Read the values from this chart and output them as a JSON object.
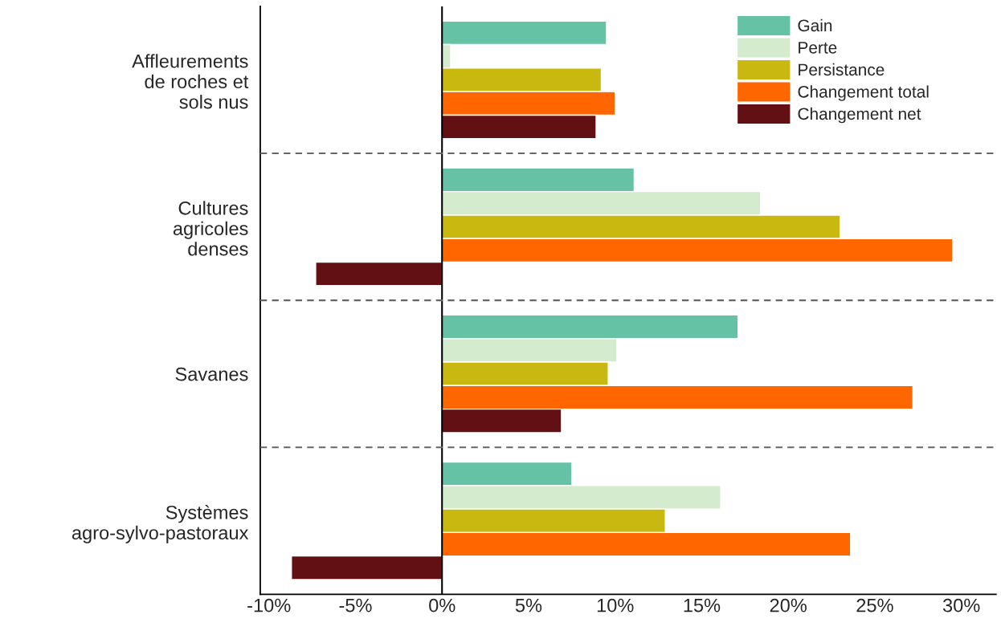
{
  "chart_data": {
    "type": "bar",
    "orientation": "horizontal",
    "categories": [
      "Affleurements\nde roches et\nsols nus",
      "Cultures\nagricoles\ndenses",
      "Savanes",
      "Systèmes\nagro-sylvo-pastoraux"
    ],
    "series": [
      {
        "name": "Gain",
        "color": "#66c2a5",
        "values": [
          9.5,
          11.1,
          17.1,
          7.5
        ]
      },
      {
        "name": "Perte",
        "color": "#d4ebce",
        "values": [
          0.5,
          18.4,
          10.1,
          16.1
        ]
      },
      {
        "name": "Persistance",
        "color": "#c8b810",
        "values": [
          9.2,
          23.0,
          9.6,
          12.9
        ]
      },
      {
        "name": "Changement total",
        "color": "#ff6600",
        "values": [
          10.0,
          29.5,
          27.2,
          23.6
        ]
      },
      {
        "name": "Changement net",
        "color": "#631014",
        "values": [
          8.9,
          -7.3,
          6.9,
          -8.7
        ]
      }
    ],
    "xlim": [
      -10.5,
      32
    ],
    "xticks": [
      {
        "value": -10,
        "label": "-10%"
      },
      {
        "value": -5,
        "label": "-5%"
      },
      {
        "value": 0,
        "label": "0%"
      },
      {
        "value": 5,
        "label": "5%"
      },
      {
        "value": 10,
        "label": "10%"
      },
      {
        "value": 15,
        "label": "15%"
      },
      {
        "value": 20,
        "label": "20%"
      },
      {
        "value": 25,
        "label": "25%"
      },
      {
        "value": 30,
        "label": "30%"
      }
    ],
    "ref_lines": [
      {
        "axis": "x",
        "value": 0,
        "color": "#000000",
        "line_style": "solid"
      }
    ],
    "legend": "top right",
    "grid": false
  }
}
